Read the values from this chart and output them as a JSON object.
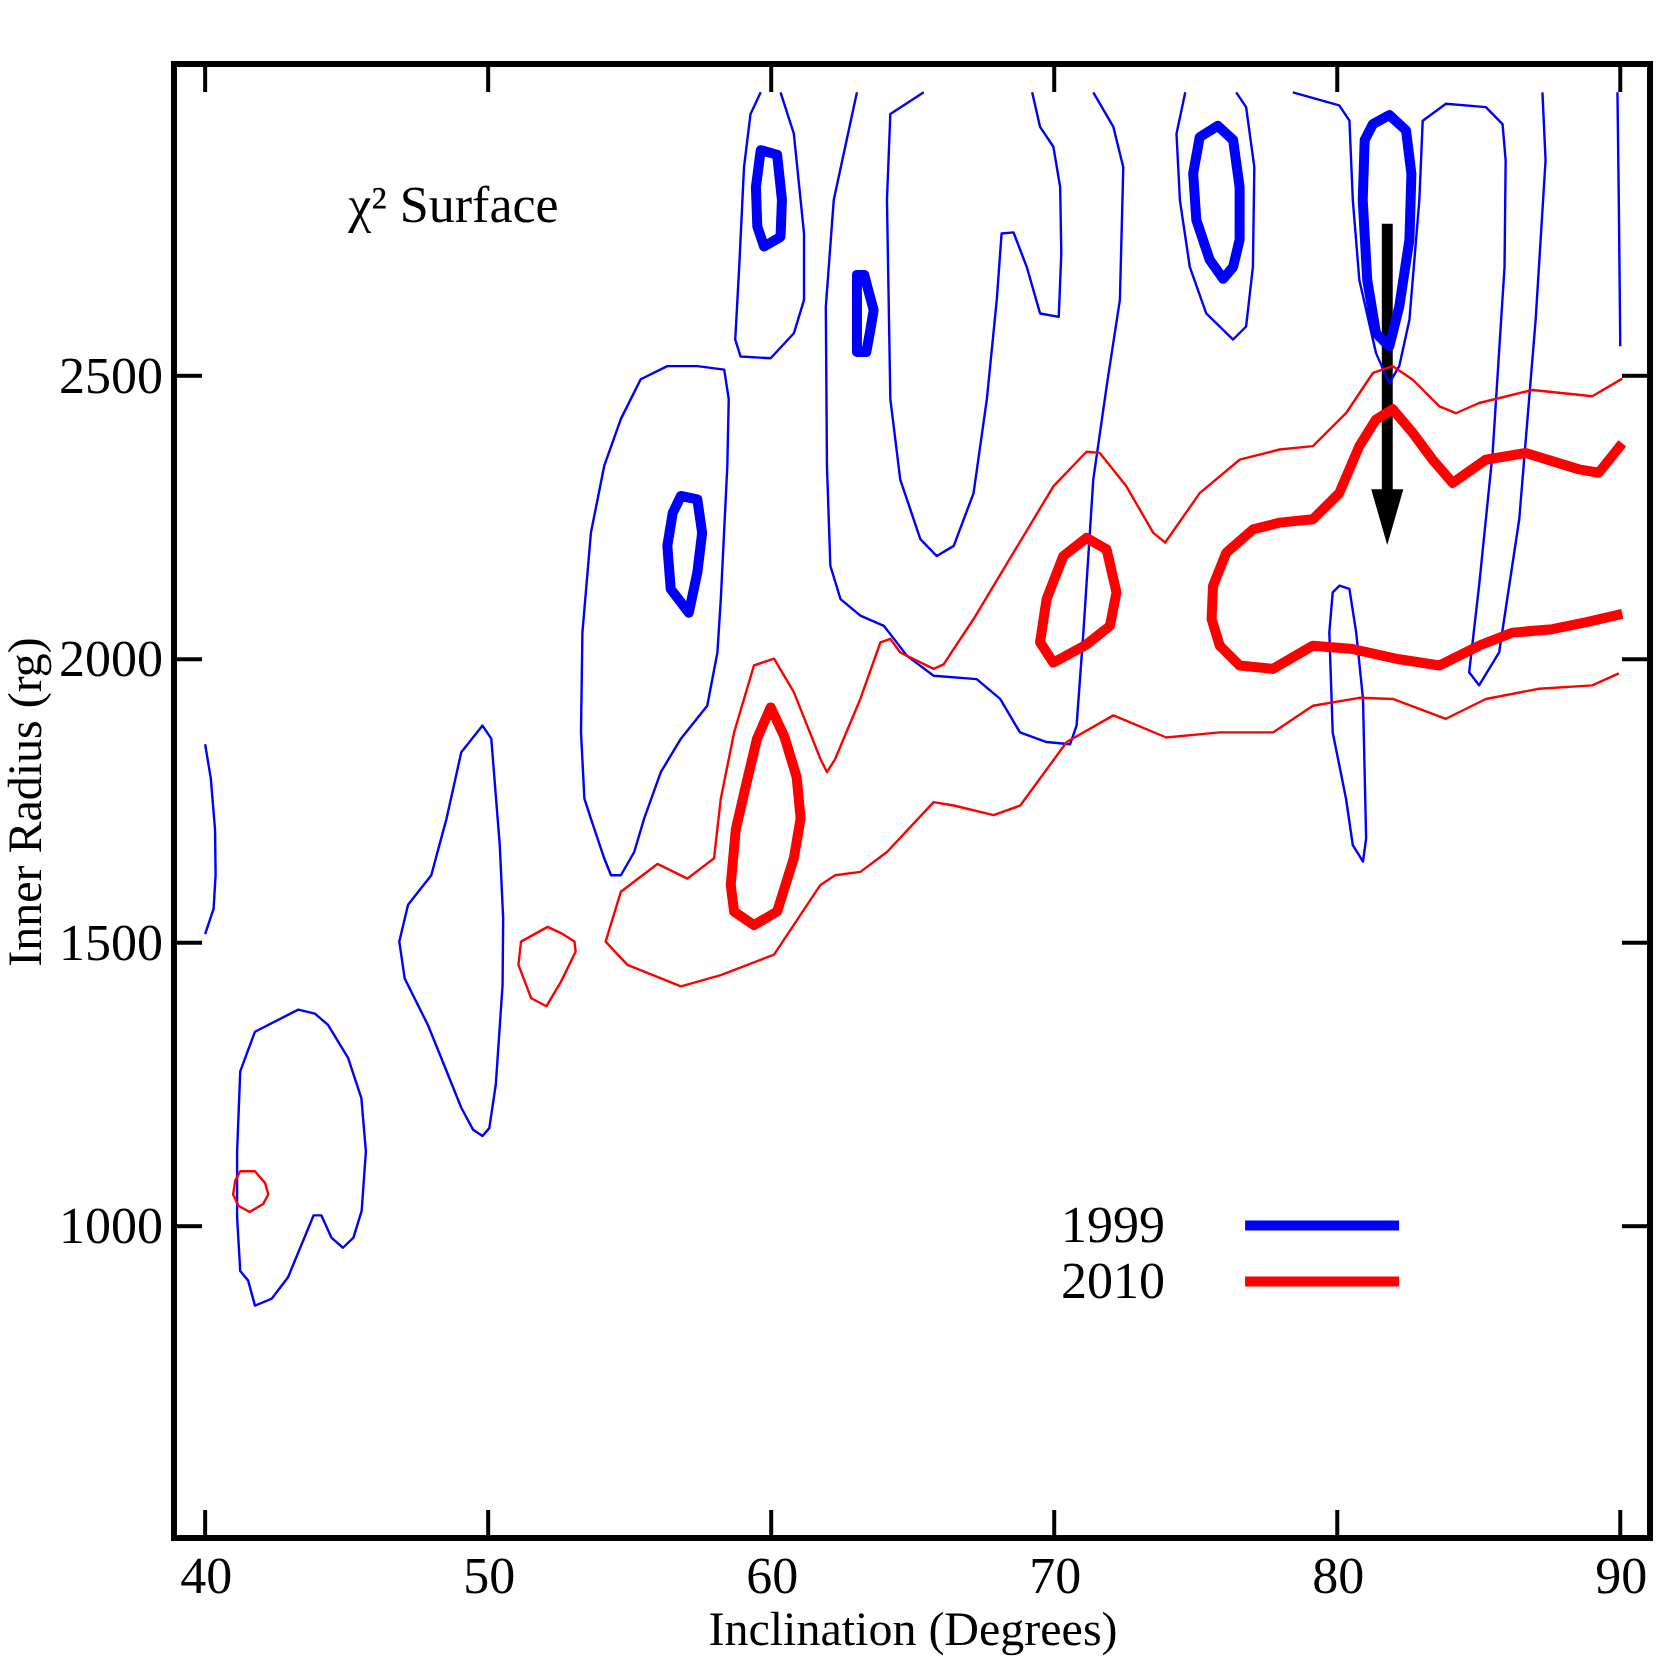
{
  "chart_data": {
    "type": "line",
    "title": "χ² Surface",
    "xlabel": "Inclination (Degrees)",
    "ylabel": "Inner Radius (rg)",
    "xlim": [
      38.9,
      91.05
    ],
    "ylim": [
      450,
      3050
    ],
    "xticks": [
      40,
      50,
      60,
      70,
      80,
      90
    ],
    "yticks": [
      1000,
      1500,
      2000,
      2500
    ],
    "legend": "bottom right",
    "series": [
      {
        "color": "#0000ff",
        "x": [
          40.0,
          40.2,
          40.35,
          40.37,
          40.3,
          40.0,
          null,
          43.29,
          41.76,
          41.24,
          41.13,
          41.13,
          41.24,
          41.52,
          41.76,
          42.35,
          42.93,
          43.83,
          44.11,
          44.46,
          44.87,
          45.24,
          45.53,
          45.68,
          45.52,
          45.05,
          44.34,
          43.88,
          43.29,
          41.76,
          null,
          49.8,
          50.11,
          50.41,
          50.53,
          50.51,
          50.27,
          50.04,
          49.8,
          49.47,
          49.05,
          48.34,
          47.87,
          47.05,
          46.86,
          47.17,
          47.99,
          48.34,
          48.53,
          49.05,
          49.8,
          50.11,
          null,
          56.33,
          57.39,
          58.34,
          58.5,
          58.45,
          58.22,
          58.1,
          57.74,
          56.81,
          56.1,
          55.51,
          55.16,
          54.69,
          54.34,
          54.1,
          53.63,
          53.4,
          53.28,
          53.33,
          53.63,
          54.1,
          54.69,
          55.39,
          56.33,
          57.39,
          null,
          59.63,
          59.27,
          59.04,
          58.87,
          58.73,
          58.92,
          59.98,
          60.8,
          61.16,
          61.16,
          60.8,
          60.33,
          null,
          63.03,
          62.21,
          61.93,
          61.97,
          62.09,
          62.45,
          63.15,
          63.98,
          64.8,
          65.74,
          67.26,
          68.09,
          68.79,
          69.73,
          70.56,
          70.79,
          71.03,
          71.38,
          71.85,
          72.32,
          72.44,
          72.09,
          71.38,
          null,
          65.39,
          64.21,
          64.09,
          64.21,
          64.56,
          65.27,
          65.85,
          66.45,
          67.15,
          67.62,
          67.97,
          68.14,
          68.56,
          69.03,
          69.5,
          70.16,
          70.25,
          70.21,
          69.97,
          69.5,
          69.22,
          null,
          74.63,
          74.32,
          74.44,
          74.79,
          75.37,
          76.32,
          76.78,
          77.02,
          77.07,
          76.78,
          76.43,
          null,
          78.43,
          80.07,
          80.43,
          80.55,
          80.78,
          81.37,
          81.84,
          82.19,
          82.55,
          82.9,
          83.02,
          83.84,
          85.25,
          85.84,
          85.95,
          85.91,
          85.49,
          85.01,
          84.66,
          85.01,
          85.72,
          86.43,
          87.01,
          87.36,
          87.25,
          null,
          89.9,
          89.95,
          90.0,
          null,
          80.08,
          80.43,
          80.67,
          80.91,
          81.02,
          80.91,
          80.55,
          80.31,
          79.84,
          79.72,
          79.84,
          80.08,
          80.43
        ],
        "values": [
          1850,
          1790,
          1700,
          1620,
          1560,
          1515,
          null,
          1382,
          1343,
          1273,
          1132,
          1015,
          921,
          904,
          860,
          872,
          910,
          1019,
          1019,
          980,
          962,
          980,
          1027,
          1132,
          1226,
          1297,
          1355,
          1375,
          1382,
          1343,
          null,
          1883,
          1860,
          1672,
          1543,
          1426,
          1250,
          1173,
          1159,
          1170,
          1209,
          1297,
          1355,
          1437,
          1502,
          1567,
          1619,
          1684,
          1719,
          1836,
          1883,
          1860,
          null,
          2517,
          2517,
          2511,
          2459,
          2341,
          2106,
          2012,
          1918,
          1860,
          1801,
          1719,
          1660,
          1619,
          1619,
          1649,
          1719,
          1754,
          1871,
          2047,
          2223,
          2341,
          2424,
          2494,
          2517,
          2517,
          null,
          3000,
          2962,
          2868,
          2692,
          2564,
          2534,
          2531,
          2575,
          2634,
          2751,
          2927,
          3000,
          null,
          3000,
          2810,
          2622,
          2341,
          2165,
          2106,
          2077,
          2059,
          2006,
          1971,
          1965,
          1930,
          1871,
          1854,
          1850,
          1883,
          2047,
          2317,
          2481,
          2634,
          2868,
          2939,
          3000,
          null,
          3000,
          2962,
          2810,
          2459,
          2317,
          2212,
          2182,
          2200,
          2293,
          2459,
          2634,
          2751,
          2753,
          2692,
          2610,
          2604,
          2716,
          2833,
          2904,
          2939,
          3000,
          null,
          3000,
          2927,
          2810,
          2692,
          2610,
          2564,
          2587,
          2692,
          2868,
          2974,
          3000,
          null,
          3000,
          2977,
          2950,
          2810,
          2669,
          2540,
          2487,
          2517,
          2599,
          2810,
          2950,
          2980,
          2974,
          2944,
          2880,
          2692,
          2364,
          2129,
          1977,
          1954,
          2012,
          2247,
          2599,
          2880,
          3000,
          null,
          3000,
          2800,
          2552,
          null,
          2130,
          2124,
          2047,
          1930,
          1684,
          1643,
          1672,
          1754,
          1871,
          2047,
          2118,
          2130,
          2124
        ]
      },
      {
        "name": "1999",
        "color": "#0000ff",
        "x": [
          56.81,
          57.39,
          57.56,
          57.39,
          57.09,
          56.45,
          56.33,
          56.52,
          56.81,
          57.39,
          null,
          59.63,
          60.21,
          60.38,
          60.33,
          59.75,
          59.51,
          59.46,
          59.63,
          60.21,
          null,
          63.03,
          63.29,
          63.43,
          63.62,
          63.5,
          63.36,
          63.03,
          63.03,
          63.03,
          63.29,
          null,
          75.78,
          76.32,
          76.55,
          76.55,
          76.32,
          75.97,
          75.49,
          75.02,
          74.91,
          75.14,
          75.78,
          76.32,
          null,
          81.84,
          82.43,
          82.62,
          82.55,
          82.19,
          81.84,
          81.37,
          81.06,
          80.9,
          80.97,
          81.26,
          81.84,
          82.43
        ],
        "values": [
          2288,
          2282,
          2223,
          2153,
          2082,
          2124,
          2200,
          2258,
          2288,
          2282,
          null,
          2898,
          2890,
          2810,
          2745,
          2728,
          2763,
          2833,
          2898,
          2890,
          null,
          2678,
          2678,
          2651,
          2616,
          2580,
          2542,
          2542,
          2609,
          2678,
          2678,
          null,
          2941,
          2916,
          2833,
          2740,
          2692,
          2671,
          2705,
          2775,
          2857,
          2921,
          2941,
          2916,
          null,
          2960,
          2933,
          2856,
          2740,
          2622,
          2552,
          2575,
          2669,
          2810,
          2916,
          2944,
          2960,
          2933
        ]
      },
      {
        "color": "#ff0000",
        "x": [
          41.24,
          41.76,
          42.12,
          42.23,
          42.05,
          41.57,
          41.17,
          40.99,
          41.06,
          41.24,
          41.76,
          null,
          52.1,
          52.57,
          53.05,
          53.09,
          52.57,
          52.06,
          51.52,
          51.07,
          51.16,
          52.1,
          52.57,
          null,
          90.07,
          89.01,
          86.9,
          85.01,
          84.19,
          83.61,
          82.67,
          81.96,
          81.26,
          80.31,
          79.14,
          77.96,
          76.55,
          75.14,
          73.92,
          73.5,
          72.55,
          71.61,
          71.14,
          69.97,
          68.56,
          67.15,
          66.09,
          65.74,
          64.56,
          64.21,
          63.86,
          63.15,
          62.26,
          61.97,
          61.74,
          60.8,
          60.1,
          59.39,
          58.69,
          58.22,
          57.98,
          57.04,
          55.98,
          54.69,
          54.15,
          54.92,
          56.81,
          58.22,
          60.1,
          61.74,
          62.26,
          63.15,
          64.09,
          65.74,
          66.45,
          67.86,
          68.8,
          70.44,
          72.09,
          73.96,
          75.84,
          77.73,
          79.14,
          80.78,
          81.96,
          83.84,
          85.25,
          87.13,
          89.01,
          89.95
        ],
        "values": [
          1097,
          1097,
          1076,
          1056,
          1039,
          1025,
          1036,
          1056,
          1080,
          1097,
          1097,
          null,
          1528,
          1517,
          1502,
          1484,
          1431,
          1388,
          1402,
          1461,
          1502,
          1528,
          1517,
          null,
          2495,
          2464,
          2475,
          2452,
          2434,
          2446,
          2493,
          2517,
          2505,
          2434,
          2376,
          2370,
          2352,
          2293,
          2206,
          2223,
          2305,
          2364,
          2366,
          2305,
          2188,
          2071,
          1991,
          1983,
          2012,
          2036,
          2030,
          1930,
          1824,
          1801,
          1824,
          1942,
          2001,
          1989,
          1871,
          1754,
          1649,
          1613,
          1639,
          1590,
          1502,
          1461,
          1423,
          1443,
          1479,
          1602,
          1619,
          1625,
          1660,
          1748,
          1742,
          1725,
          1742,
          1854,
          1901,
          1862,
          1871,
          1871,
          1918,
          1932,
          1930,
          1895,
          1930,
          1948,
          1954,
          1975
        ]
      },
      {
        "name": "2010",
        "color": "#ff0000",
        "x": [
          59.98,
          60.47,
          60.9,
          61.04,
          60.8,
          60.21,
          59.39,
          58.69,
          58.57,
          58.75,
          59.11,
          59.5,
          59.98,
          60.47,
          null,
          71.14,
          71.85,
          72.2,
          71.97,
          71.14,
          69.97,
          69.5,
          69.73,
          70.32,
          71.14,
          71.85,
          null,
          90.07,
          89.24,
          88.54,
          86.66,
          85.25,
          84.08,
          83.37,
          82.67,
          81.96,
          81.37,
          80.78,
          80.07,
          79.14,
          77.96,
          77.02,
          76.08,
          75.61,
          75.56,
          75.85,
          76.55,
          77.73,
          79.14,
          80.55,
          82.19,
          83.61,
          85.01,
          86.19,
          87.6,
          88.77,
          90.07
        ],
        "values": [
          1915,
          1863,
          1792,
          1719,
          1649,
          1555,
          1531,
          1555,
          1602,
          1700,
          1778,
          1860,
          1915,
          1863,
          null,
          2214,
          2194,
          2118,
          2059,
          2026,
          1994,
          2030,
          2106,
          2182,
          2214,
          2194,
          null,
          2381,
          2329,
          2335,
          2364,
          2352,
          2311,
          2352,
          2399,
          2441,
          2423,
          2376,
          2293,
          2247,
          2241,
          2229,
          2188,
          2129,
          2071,
          2024,
          1989,
          1983,
          2024,
          2018,
          2000,
          1989,
          2024,
          2047,
          2053,
          2065,
          2080
        ]
      }
    ]
  }
}
